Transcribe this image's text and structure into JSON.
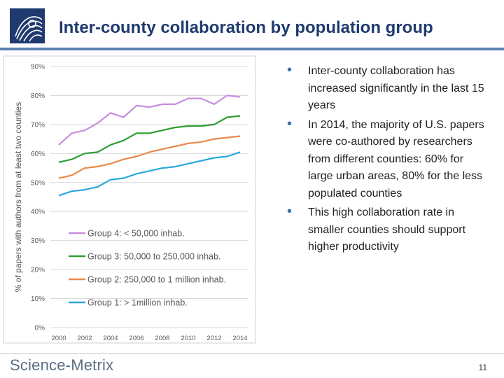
{
  "header": {
    "title": "Inter-county collaboration by population group"
  },
  "bullets": [
    "Inter-county collaboration has increased significantly in the last 15 years",
    "In 2014, the majority of U.S. papers were co-authored by researchers from different counties: 60% for large urban areas, 80% for the less populated counties",
    "This high collaboration rate in smaller counties should support higher productivity"
  ],
  "footer": {
    "brand_main": "Science",
    "brand_sep": "-",
    "brand_sub": "Metrix",
    "page_number": "11"
  },
  "colors": {
    "title": "#1f3a6e",
    "accent": "#5b80b0",
    "bullet": "#3a6fb0",
    "group4": "#c98ce0",
    "group3": "#2e9e32",
    "group2": "#e8894a",
    "group1": "#2aa8dc"
  },
  "chart_data": {
    "type": "line",
    "title": "",
    "xlabel": "",
    "ylabel": "% of papers with authors from at least two counties",
    "ylim": [
      0,
      90
    ],
    "yticks": [
      "0%",
      "10%",
      "20%",
      "30%",
      "40%",
      "50%",
      "60%",
      "70%",
      "80%",
      "90%"
    ],
    "xticks": [
      "2000",
      "2002",
      "2004",
      "2006",
      "2008",
      "2010",
      "2012",
      "2014"
    ],
    "x": [
      2000,
      2001,
      2002,
      2003,
      2004,
      2005,
      2006,
      2007,
      2008,
      2009,
      2010,
      2011,
      2012,
      2013,
      2014
    ],
    "grid": true,
    "legend": "bottom-center",
    "series": [
      {
        "name": "Group 4: < 50,000 inhab.",
        "color": "#c98ce0",
        "values": [
          63,
          67,
          68,
          70.5,
          74,
          72.5,
          76.5,
          76,
          77,
          77,
          79,
          79,
          77,
          80,
          79.5
        ]
      },
      {
        "name": "Group 3: 50,000 to 250,000 inhab.",
        "color": "#2e9e32",
        "values": [
          57,
          58,
          60,
          60.5,
          63,
          64.5,
          67,
          67,
          68,
          69,
          69.5,
          69.5,
          70,
          72.5,
          73
        ]
      },
      {
        "name": "Group 2: 250,000 to 1 million inhab.",
        "color": "#e8894a",
        "values": [
          51.5,
          52.5,
          55,
          55.5,
          56.5,
          58,
          59,
          60.5,
          61.5,
          62.5,
          63.5,
          64,
          65,
          65.5,
          66
        ]
      },
      {
        "name": "Group 1: > 1million inhab.",
        "color": "#2aa8dc",
        "values": [
          45.5,
          47,
          47.5,
          48.5,
          51,
          51.5,
          53,
          54,
          55,
          55.5,
          56.5,
          57.5,
          58.5,
          59,
          60.5
        ]
      }
    ]
  }
}
